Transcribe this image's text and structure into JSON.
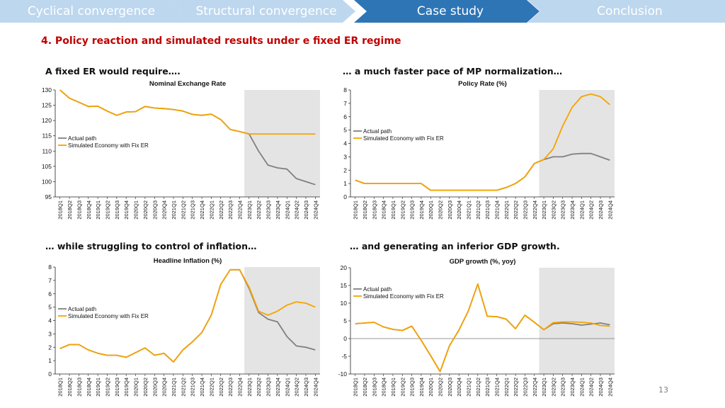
{
  "nav": {
    "steps": [
      {
        "label": "Cyclical convergence",
        "active": false
      },
      {
        "label": "Structural convergence",
        "active": false
      },
      {
        "label": "Case study",
        "active": true
      },
      {
        "label": "Conclusion",
        "active": false
      }
    ]
  },
  "section_title": "4. Policy reaction and simulated results under e fixed ER regime",
  "captions": {
    "top_left": "A fixed ER would require….",
    "top_right": "… a much faster pace of MP normalization…",
    "bottom_left": "… while struggling to control of inflation…",
    "bottom_right": "… and generating an inferior GDP growth."
  },
  "page_number": "13",
  "colors": {
    "nav_inactive": "#bdd7ee",
    "nav_active": "#2e75b6",
    "title_red": "#c00000",
    "actual": "#808080",
    "simulated": "#f5a300",
    "shade": "#e4e4e4"
  },
  "chart_data": [
    {
      "type": "line",
      "title": "Nominal Exchange Rate",
      "categories": [
        "2018Q1",
        "2018Q2",
        "2018Q3",
        "2018Q4",
        "2019Q1",
        "2019Q2",
        "2019Q3",
        "2019Q4",
        "2020Q1",
        "2020Q2",
        "2020Q3",
        "2020Q4",
        "2021Q1",
        "2021Q2",
        "2021Q3",
        "2021Q4",
        "2022Q1",
        "2022Q2",
        "2022Q3",
        "2022Q4",
        "2023Q1",
        "2023Q2",
        "2023Q3",
        "2023Q4",
        "2024Q1",
        "2024Q2",
        "2024Q3",
        "2024Q4"
      ],
      "ylim": [
        95,
        130
      ],
      "yticks": [
        95,
        100,
        105,
        110,
        115,
        120,
        125,
        130
      ],
      "shade_from": "2022Q4",
      "legend": [
        "Actual path",
        "Simulated Economy with Fix ER"
      ],
      "legend_position": "left-middle",
      "series": [
        {
          "name": "Actual path",
          "values": [
            130,
            127.3,
            126,
            124.6,
            124.7,
            123.1,
            121.7,
            122.8,
            122.9,
            124.6,
            124.1,
            123.9,
            123.6,
            123.1,
            122,
            121.7,
            122.1,
            120.3,
            117.1,
            116.4,
            115.6,
            110,
            105.4,
            104.5,
            104.1,
            101,
            100,
            99
          ]
        },
        {
          "name": "Simulated Economy with Fix ER",
          "values": [
            130,
            127.3,
            126,
            124.6,
            124.7,
            123.1,
            121.7,
            122.8,
            122.9,
            124.6,
            124.1,
            123.9,
            123.6,
            123.1,
            122,
            121.7,
            122.1,
            120.3,
            117.1,
            116.4,
            115.6,
            115.6,
            115.6,
            115.6,
            115.6,
            115.6,
            115.6,
            115.6
          ]
        }
      ]
    },
    {
      "type": "line",
      "title": "Policy Rate (%)",
      "categories": [
        "2018Q1",
        "2018Q2",
        "2018Q3",
        "2018Q4",
        "2019Q1",
        "2019Q2",
        "2019Q3",
        "2019Q4",
        "2020Q1",
        "2020Q2",
        "2020Q3",
        "2020Q4",
        "2021Q1",
        "2021Q2",
        "2021Q3",
        "2021Q4",
        "2022Q1",
        "2022Q2",
        "2022Q3",
        "2022Q4",
        "2023Q1",
        "2023Q2",
        "2023Q3",
        "2023Q4",
        "2024Q1",
        "2024Q2",
        "2024Q3",
        "2024Q4"
      ],
      "ylim": [
        0,
        8
      ],
      "yticks": [
        0,
        1,
        2,
        3,
        4,
        5,
        6,
        7,
        8
      ],
      "shade_from": "2022Q4",
      "legend": [
        "Actual path",
        "Simulated Economy with Fix ER"
      ],
      "legend_position": "left-middle",
      "series": [
        {
          "name": "Actual path",
          "values": [
            1.25,
            1,
            1,
            1,
            1,
            1,
            1,
            1,
            0.5,
            0.5,
            0.5,
            0.5,
            0.5,
            0.5,
            0.5,
            0.5,
            0.7,
            1,
            1.5,
            2.5,
            2.8,
            3,
            3,
            3.2,
            3.25,
            3.25,
            3,
            2.75
          ]
        },
        {
          "name": "Simulated Economy with Fix ER",
          "values": [
            1.25,
            1,
            1,
            1,
            1,
            1,
            1,
            1,
            0.5,
            0.5,
            0.5,
            0.5,
            0.5,
            0.5,
            0.5,
            0.5,
            0.7,
            1,
            1.5,
            2.5,
            2.8,
            3.6,
            5.3,
            6.7,
            7.5,
            7.7,
            7.5,
            6.9
          ]
        }
      ]
    },
    {
      "type": "line",
      "title": "Headline Inflation (%)",
      "categories": [
        "2018Q1",
        "2018Q2",
        "2018Q3",
        "2018Q4",
        "2019Q1",
        "2019Q2",
        "2019Q3",
        "2019Q4",
        "2020Q1",
        "2020Q2",
        "2020Q3",
        "2020Q4",
        "2021Q1",
        "2021Q2",
        "2021Q3",
        "2021Q4",
        "2022Q1",
        "2022Q2",
        "2022Q3",
        "2022Q4",
        "2023Q1",
        "2023Q2",
        "2023Q3",
        "2023Q4",
        "2024Q1",
        "2024Q2",
        "2024Q3",
        "2024Q4"
      ],
      "ylim": [
        0,
        8
      ],
      "yticks": [
        0,
        1,
        2,
        3,
        4,
        5,
        6,
        7,
        8
      ],
      "shade_from": "2022Q4",
      "legend": [
        "Actual path",
        "Simulated Economy with Fix ER"
      ],
      "legend_position": "left-middle",
      "series": [
        {
          "name": "Actual path",
          "values": [
            1.9,
            2.2,
            2.2,
            1.8,
            1.55,
            1.4,
            1.4,
            1.25,
            1.6,
            1.95,
            1.4,
            1.55,
            0.9,
            1.8,
            2.4,
            3.1,
            4.4,
            6.7,
            7.8,
            7.8,
            6.4,
            4.6,
            4.1,
            3.9,
            2.8,
            2.1,
            2,
            1.8
          ]
        },
        {
          "name": "Simulated Economy with Fix ER",
          "values": [
            1.9,
            2.2,
            2.2,
            1.8,
            1.55,
            1.4,
            1.4,
            1.25,
            1.6,
            1.95,
            1.4,
            1.55,
            0.9,
            1.8,
            2.4,
            3.1,
            4.4,
            6.7,
            7.8,
            7.8,
            6.5,
            4.7,
            4.4,
            4.7,
            5.15,
            5.4,
            5.3,
            5
          ]
        }
      ]
    },
    {
      "type": "line",
      "title": "GDP growth (%, yoy)",
      "categories": [
        "2018Q1",
        "2018Q2",
        "2018Q3",
        "2018Q4",
        "2019Q1",
        "2019Q2",
        "2019Q3",
        "2019Q4",
        "2020Q1",
        "2020Q2",
        "2020Q3",
        "2020Q4",
        "2021Q1",
        "2021Q2",
        "2021Q3",
        "2021Q4",
        "2022Q1",
        "2022Q2",
        "2022Q3",
        "2022Q4",
        "2023Q1",
        "2023Q2",
        "2023Q3",
        "2023Q4",
        "2024Q1",
        "2024Q2",
        "2024Q3",
        "2024Q4"
      ],
      "ylim": [
        -10,
        20
      ],
      "yticks": [
        -10,
        -5,
        0,
        5,
        10,
        15,
        20
      ],
      "shade_from": "2022Q4",
      "legend": [
        "Actual path",
        "Simulated Economy with Fix ER"
      ],
      "legend_position": "top-left",
      "series": [
        {
          "name": "Actual path",
          "values": [
            4.2,
            4.4,
            4.6,
            3.3,
            2.6,
            2.3,
            3.5,
            -0.5,
            -4.8,
            -9.3,
            -2,
            2.4,
            7.8,
            15.4,
            6.3,
            6.2,
            5.5,
            2.8,
            6.6,
            4.6,
            2.5,
            4.2,
            4.4,
            4.2,
            3.8,
            4.1,
            4.4,
            3.9
          ]
        },
        {
          "name": "Simulated Economy with Fix ER",
          "values": [
            4.2,
            4.4,
            4.6,
            3.3,
            2.6,
            2.3,
            3.5,
            -0.5,
            -4.8,
            -9.3,
            -2,
            2.4,
            7.8,
            15.4,
            6.3,
            6.2,
            5.5,
            2.8,
            6.6,
            4.6,
            2.5,
            4.5,
            4.7,
            4.7,
            4.6,
            4.4,
            3.7,
            3.5
          ]
        }
      ]
    }
  ]
}
